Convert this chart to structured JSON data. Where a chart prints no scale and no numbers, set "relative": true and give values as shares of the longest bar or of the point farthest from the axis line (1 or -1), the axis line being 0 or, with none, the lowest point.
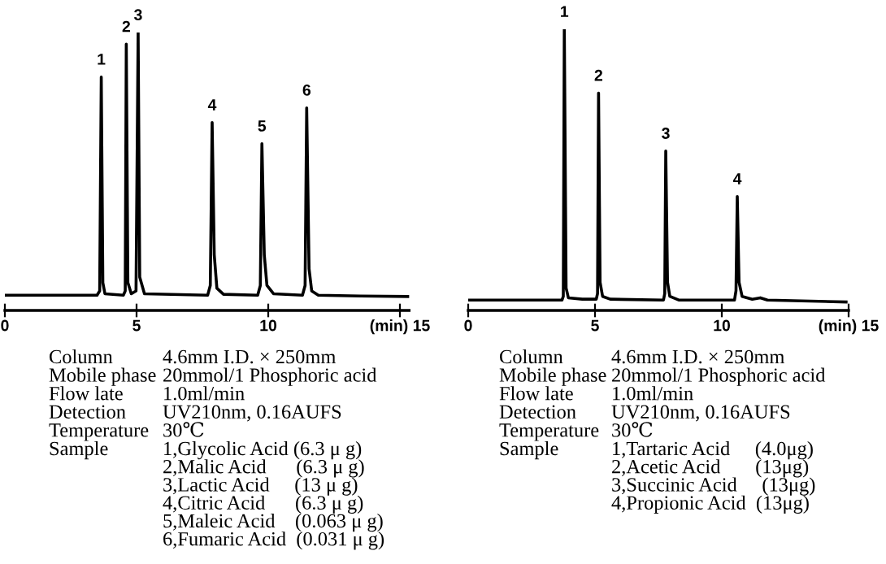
{
  "chart_data": [
    {
      "type": "line",
      "relative": true,
      "xlim": [
        0,
        15.35
      ],
      "xticks": [
        0,
        5,
        10,
        {
          "value": 15,
          "label": "(min) 15"
        }
      ],
      "line_style": "solid",
      "marker": "none",
      "series": [
        {
          "color": "#000000",
          "x": [
            0,
            3.5,
            3.6,
            3.66,
            3.72,
            3.8,
            4.5,
            4.57,
            4.61,
            4.67,
            4.8,
            4.98,
            5.06,
            5.12,
            5.3,
            7.7,
            7.8,
            7.87,
            7.95,
            8.05,
            8.3,
            9.6,
            9.7,
            9.76,
            9.85,
            9.95,
            10.2,
            11.3,
            11.4,
            11.46,
            11.55,
            11.65,
            11.9,
            13.5,
            15.35
          ],
          "values": [
            0.055,
            0.055,
            0.07,
            0.84,
            0.1,
            0.06,
            0.055,
            0.07,
            0.958,
            0.1,
            0.06,
            0.07,
            1,
            0.12,
            0.06,
            0.055,
            0.09,
            0.676,
            0.2,
            0.08,
            0.058,
            0.055,
            0.09,
            0.6,
            0.2,
            0.09,
            0.06,
            0.055,
            0.09,
            0.729,
            0.15,
            0.07,
            0.055,
            0.052,
            0.05
          ]
        }
      ],
      "annotations": [
        {
          "text": "1",
          "x": 3.66,
          "y": 0.84
        },
        {
          "text": "2",
          "x": 4.61,
          "y": 0.958
        },
        {
          "text": "3",
          "x": 5.06,
          "y": 1
        },
        {
          "text": "4",
          "x": 7.87,
          "y": 0.676
        },
        {
          "text": "5",
          "x": 9.76,
          "y": 0.6
        },
        {
          "text": "6",
          "x": 11.46,
          "y": 0.729
        },
        "Column",
        "4.6mm I.D. × 250mm",
        "Mobile phase",
        "20mmol/1 Phosphoric acid",
        "Flow late",
        "1.0ml/min",
        "Detection",
        "UV210nm, 0.16AUFS",
        "Temperature",
        "30℃",
        "Sample",
        "1,Glycolic Acid (6.3 μ g)\n2,Malic Acid      (6.3 μ g)\n3,Lactic Acid     (13 μ g)\n4,Citric Acid      (6.3 μ g)\n5,Maleic Acid    (0.063 μ g)\n6,Fumaric Acid  (0.031 μ g)"
      ]
    },
    {
      "type": "line",
      "relative": true,
      "xlim": [
        0,
        15
      ],
      "xticks": [
        0,
        5,
        10,
        {
          "value": 15,
          "label": "(min) 15"
        }
      ],
      "line_style": "solid",
      "marker": "none",
      "series": [
        {
          "color": "#000000",
          "x": [
            0,
            3.7,
            3.75,
            3.79,
            3.86,
            3.95,
            4.5,
            5.05,
            5.1,
            5.14,
            5.2,
            5.3,
            5.6,
            7.7,
            7.75,
            7.79,
            7.86,
            7.95,
            8.3,
            10.5,
            10.56,
            10.61,
            10.68,
            10.8,
            11.2,
            11.52,
            11.8,
            14.9
          ],
          "values": [
            0.037,
            0.037,
            0.05,
            1,
            0.08,
            0.045,
            0.04,
            0.04,
            0.06,
            0.773,
            0.1,
            0.05,
            0.04,
            0.037,
            0.06,
            0.567,
            0.1,
            0.05,
            0.037,
            0.037,
            0.07,
            0.405,
            0.1,
            0.05,
            0.04,
            0.045,
            0.037,
            0.03
          ]
        }
      ],
      "annotations": [
        {
          "text": "1",
          "x": 3.79,
          "y": 1
        },
        {
          "text": "2",
          "x": 5.14,
          "y": 0.773
        },
        {
          "text": "3",
          "x": 7.79,
          "y": 0.567
        },
        {
          "text": "4",
          "x": 10.61,
          "y": 0.405
        },
        "Column",
        "4.6mm I.D. × 250mm",
        "Mobile phase",
        "20mmol/1 Phosphoric acid",
        "Flow late",
        "1.0ml/min",
        "Detection",
        "UV210nm, 0.16AUFS",
        "Temperature",
        "30℃",
        "Sample",
        "1,Tartaric Acid     (4.0μg)\n2,Acetic Acid       (13μg)\n3,Succinic Acid     (13μg)\n4,Propionic Acid  (13μg)"
      ]
    }
  ]
}
